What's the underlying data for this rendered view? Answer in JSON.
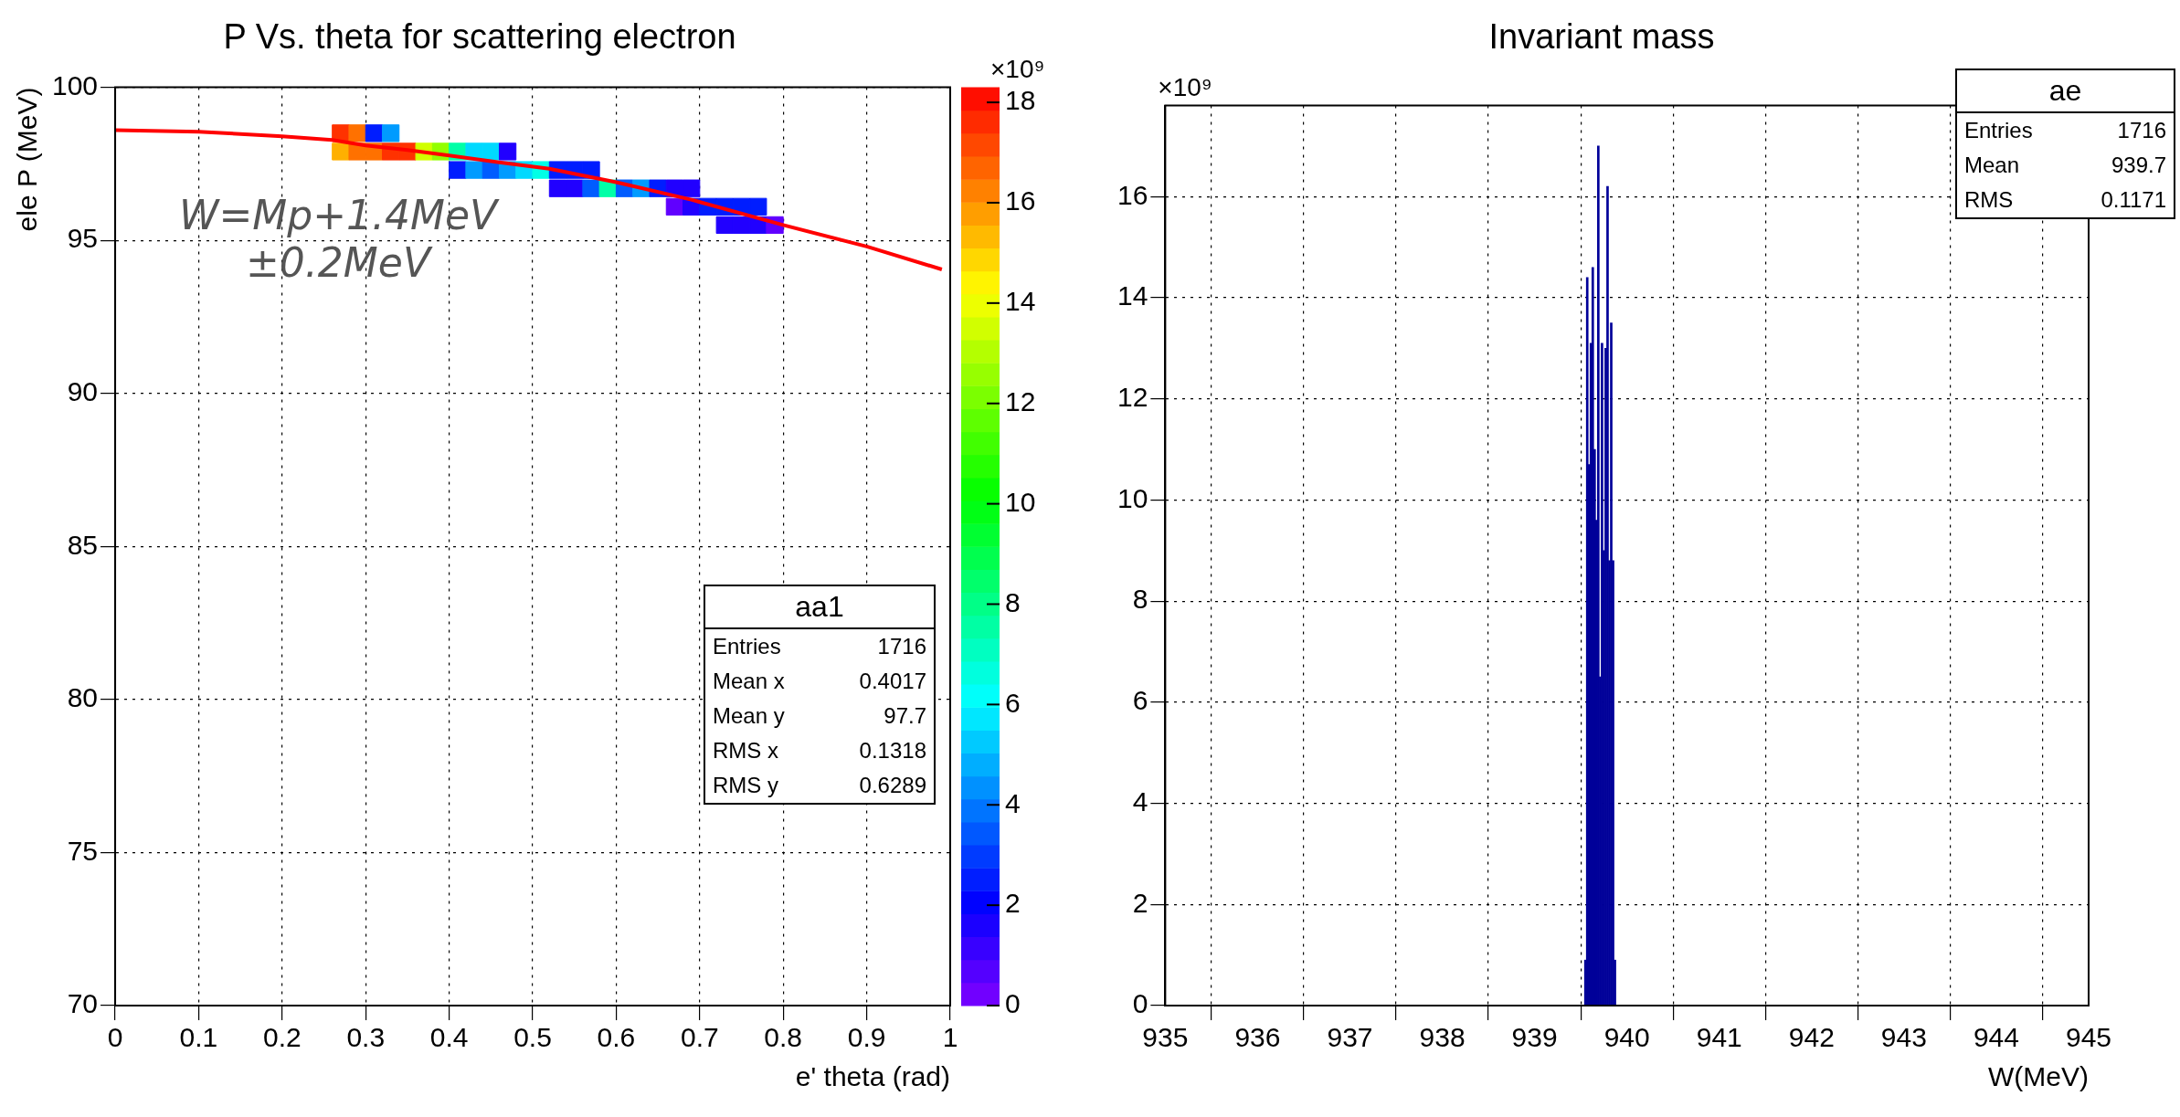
{
  "chart_data": [
    {
      "type": "scatter",
      "title": "P Vs. theta for scattering electron",
      "xlabel": "e' theta (rad)",
      "ylabel": "ele P (MeV)",
      "clabel": "×10⁹",
      "xlim": [
        0,
        1
      ],
      "xticks": [
        0,
        0.1,
        0.2,
        0.3,
        0.4,
        0.5,
        0.6,
        0.7,
        0.8,
        0.9,
        1
      ],
      "ylim": [
        70,
        100
      ],
      "yticks": [
        70,
        75,
        80,
        85,
        90,
        95,
        100
      ],
      "grid": true,
      "clim": [
        0,
        18.3
      ],
      "cticks": [
        0,
        2,
        4,
        6,
        8,
        10,
        12,
        14,
        16,
        18
      ],
      "series": [
        {
          "type": "scatter",
          "marker": "square",
          "x": [
            0.27,
            0.29,
            0.31,
            0.33,
            0.27,
            0.29,
            0.31,
            0.33,
            0.35,
            0.37,
            0.39,
            0.41,
            0.43,
            0.45,
            0.47,
            0.41,
            0.43,
            0.45,
            0.47,
            0.49,
            0.51,
            0.53,
            0.55,
            0.57,
            0.53,
            0.55,
            0.57,
            0.59,
            0.61,
            0.63,
            0.65,
            0.67,
            0.69,
            0.67,
            0.69,
            0.71,
            0.73,
            0.75,
            0.77,
            0.73,
            0.75,
            0.77,
            0.79
          ],
          "values": [
            98.5,
            98.5,
            98.5,
            98.5,
            97.9,
            97.9,
            97.9,
            97.9,
            97.9,
            97.9,
            97.9,
            97.9,
            97.9,
            97.9,
            97.9,
            97.3,
            97.3,
            97.3,
            97.3,
            97.3,
            97.3,
            97.3,
            97.3,
            97.3,
            96.7,
            96.7,
            96.7,
            96.7,
            96.7,
            96.7,
            96.7,
            96.7,
            96.7,
            96.1,
            96.1,
            96.1,
            96.1,
            96.1,
            96.1,
            95.5,
            95.5,
            95.5,
            95.5
          ],
          "colors": [
            "#ff3200",
            "#ff7100",
            "#001dff",
            "#009bff",
            "#ffb000",
            "#ff7100",
            "#ff7100",
            "#ff3200",
            "#ff3200",
            "#d1ff00",
            "#92ff00",
            "#00ffa7",
            "#00d9ff",
            "#00d9ff",
            "#2100ff",
            "#001dff",
            "#009bff",
            "#005cff",
            "#009bff",
            "#00d9ff",
            "#00ffe6",
            "#001dff",
            "#001dff",
            "#001dff",
            "#2100ff",
            "#2100ff",
            "#005cff",
            "#00ffa7",
            "#005cff",
            "#009bff",
            "#001dff",
            "#2100ff",
            "#2100ff",
            "#6000ff",
            "#2100ff",
            "#001dff",
            "#001dff",
            "#001dff",
            "#001dff",
            "#2100ff",
            "#2100ff",
            "#2100ff",
            "#6000ff"
          ],
          "cvalues": [
            17.5,
            16.5,
            2.5,
            4.5,
            15.5,
            16.5,
            16.5,
            17.5,
            17.5,
            13.5,
            12.5,
            7.5,
            5.5,
            5.5,
            1.5,
            2.5,
            4.5,
            3.5,
            4.5,
            5.5,
            6.5,
            2.5,
            2.5,
            2.5,
            1.5,
            1.5,
            3.5,
            7.5,
            3.5,
            4.5,
            2.5,
            1.5,
            1.5,
            0.5,
            1.5,
            2.5,
            2.5,
            2.5,
            2.5,
            1.5,
            1.5,
            1.5,
            0.5
          ]
        },
        {
          "type": "line",
          "color": "#ff0000",
          "x": [
            0,
            0.1,
            0.2,
            0.26,
            0.3,
            0.35,
            0.4,
            0.46,
            0.52,
            0.6,
            0.69,
            0.8,
            0.9,
            0.99
          ],
          "values": [
            98.6,
            98.55,
            98.4,
            98.28,
            98.1,
            97.95,
            97.77,
            97.55,
            97.34,
            96.9,
            96.33,
            95.5,
            94.8,
            94.05
          ]
        }
      ],
      "annotations": [
        "W=Mp+1.4MeV ±0.2MeV",
        "aa1",
        "Entries",
        "1716",
        "Mean x",
        "0.4017",
        "Mean y",
        "97.7",
        "RMS x",
        "0.1318",
        "RMS y",
        "0.6289"
      ]
    },
    {
      "type": "histogram",
      "title": "Invariant mass",
      "xlabel": "W(MeV)",
      "ylabel": "×10⁹",
      "color": "#000099",
      "xlim": [
        935,
        945
      ],
      "xticks": [
        935,
        936,
        937,
        938,
        939,
        940,
        941,
        942,
        943,
        944,
        945
      ],
      "ylim": [
        0,
        17.8
      ],
      "yticks": [
        0,
        2,
        4,
        6,
        8,
        10,
        12,
        14,
        16
      ],
      "grid": true,
      "bins": [
        939.54,
        939.56,
        939.58,
        939.6,
        939.62,
        939.64,
        939.66,
        939.68,
        939.7,
        939.72,
        939.74,
        939.76,
        939.78,
        939.8,
        939.82,
        939.84,
        939.86,
        939.88
      ],
      "values": [
        0.9,
        14.4,
        10.7,
        13.1,
        14.6,
        11.0,
        9.6,
        17.0,
        6.5,
        13.1,
        9.0,
        13.0,
        16.2,
        8.8,
        13.5,
        8.8,
        0.9
      ],
      "annotations": [
        "ae",
        "Entries",
        "1716",
        "Mean",
        "939.7",
        "RMS",
        "0.1171"
      ]
    }
  ]
}
